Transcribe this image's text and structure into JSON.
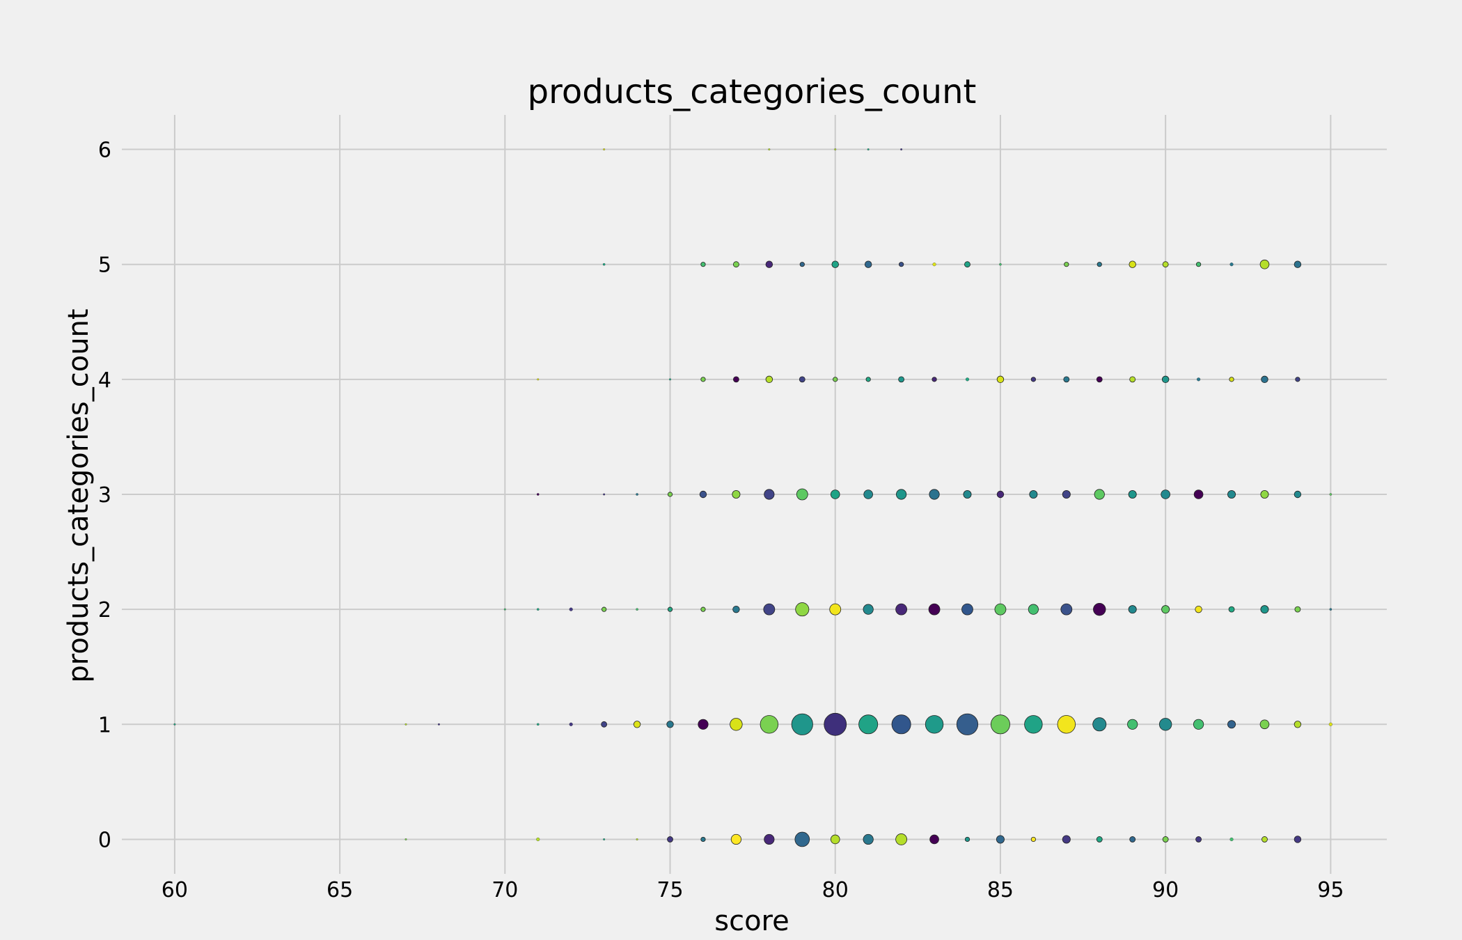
{
  "chart_data": {
    "type": "scatter",
    "title": "products_categories_count",
    "xlabel": "score",
    "ylabel": "products_categories_count",
    "xlim": [
      58.4,
      96.7
    ],
    "ylim": [
      -0.3,
      6.3
    ],
    "xticks": [
      60,
      65,
      70,
      75,
      80,
      85,
      90,
      95
    ],
    "yticks": [
      0,
      1,
      2,
      3,
      4,
      5,
      6
    ],
    "grid": true,
    "legend": "none",
    "colormap": "viridis",
    "points": [
      {
        "x": 67,
        "y": 0,
        "size": 1,
        "color": "#7ad151"
      },
      {
        "x": 71,
        "y": 0,
        "size": 3,
        "color": "#b5de2b"
      },
      {
        "x": 73,
        "y": 0,
        "size": 1,
        "color": "#22a884"
      },
      {
        "x": 74,
        "y": 0,
        "size": 1,
        "color": "#b5de2b"
      },
      {
        "x": 75,
        "y": 0,
        "size": 5,
        "color": "#443983"
      },
      {
        "x": 76,
        "y": 0,
        "size": 4,
        "color": "#2a788e"
      },
      {
        "x": 77,
        "y": 0,
        "size": 9,
        "color": "#fde725"
      },
      {
        "x": 78,
        "y": 0,
        "size": 9,
        "color": "#482878"
      },
      {
        "x": 79,
        "y": 0,
        "size": 13,
        "color": "#31688e"
      },
      {
        "x": 80,
        "y": 0,
        "size": 8,
        "color": "#b5de2b"
      },
      {
        "x": 81,
        "y": 0,
        "size": 9,
        "color": "#2a788e"
      },
      {
        "x": 82,
        "y": 0,
        "size": 10,
        "color": "#b5de2b"
      },
      {
        "x": 83,
        "y": 0,
        "size": 8,
        "color": "#440154"
      },
      {
        "x": 84,
        "y": 0,
        "size": 4,
        "color": "#1f988b"
      },
      {
        "x": 85,
        "y": 0,
        "size": 7,
        "color": "#31688e"
      },
      {
        "x": 86,
        "y": 0,
        "size": 4,
        "color": "#fde725"
      },
      {
        "x": 87,
        "y": 0,
        "size": 7,
        "color": "#443983"
      },
      {
        "x": 88,
        "y": 0,
        "size": 5,
        "color": "#22a884"
      },
      {
        "x": 89,
        "y": 0,
        "size": 5,
        "color": "#31688e"
      },
      {
        "x": 90,
        "y": 0,
        "size": 5,
        "color": "#7ad151"
      },
      {
        "x": 91,
        "y": 0,
        "size": 5,
        "color": "#443983"
      },
      {
        "x": 92,
        "y": 0,
        "size": 3,
        "color": "#44bf70"
      },
      {
        "x": 93,
        "y": 0,
        "size": 5,
        "color": "#b5de2b"
      },
      {
        "x": 94,
        "y": 0,
        "size": 6,
        "color": "#443983"
      },
      {
        "x": 60,
        "y": 1,
        "size": 1,
        "color": "#22a884"
      },
      {
        "x": 67,
        "y": 1,
        "size": 1,
        "color": "#b5de2b"
      },
      {
        "x": 68,
        "y": 1,
        "size": 1,
        "color": "#443983"
      },
      {
        "x": 71,
        "y": 1,
        "size": 2,
        "color": "#22a884"
      },
      {
        "x": 72,
        "y": 1,
        "size": 3,
        "color": "#443983"
      },
      {
        "x": 73,
        "y": 1,
        "size": 5,
        "color": "#414487"
      },
      {
        "x": 74,
        "y": 1,
        "size": 6,
        "color": "#dde318"
      },
      {
        "x": 75,
        "y": 1,
        "size": 6,
        "color": "#2a788e"
      },
      {
        "x": 76,
        "y": 1,
        "size": 9,
        "color": "#440154"
      },
      {
        "x": 77,
        "y": 1,
        "size": 11,
        "color": "#d8e219"
      },
      {
        "x": 78,
        "y": 1,
        "size": 16,
        "color": "#7ad151"
      },
      {
        "x": 79,
        "y": 1,
        "size": 19,
        "color": "#1f968b"
      },
      {
        "x": 80,
        "y": 1,
        "size": 20,
        "color": "#3e2f7b"
      },
      {
        "x": 81,
        "y": 1,
        "size": 17,
        "color": "#20a386"
      },
      {
        "x": 82,
        "y": 1,
        "size": 17,
        "color": "#31568c"
      },
      {
        "x": 83,
        "y": 1,
        "size": 16,
        "color": "#1f9a8a"
      },
      {
        "x": 84,
        "y": 1,
        "size": 19,
        "color": "#355e8d"
      },
      {
        "x": 85,
        "y": 1,
        "size": 17,
        "color": "#6ccd5a"
      },
      {
        "x": 86,
        "y": 1,
        "size": 16,
        "color": "#20a386"
      },
      {
        "x": 87,
        "y": 1,
        "size": 16,
        "color": "#f2e51d"
      },
      {
        "x": 88,
        "y": 1,
        "size": 12,
        "color": "#23898e"
      },
      {
        "x": 89,
        "y": 1,
        "size": 9,
        "color": "#44bf70"
      },
      {
        "x": 90,
        "y": 1,
        "size": 11,
        "color": "#238a8d"
      },
      {
        "x": 91,
        "y": 1,
        "size": 9,
        "color": "#44bf70"
      },
      {
        "x": 92,
        "y": 1,
        "size": 7,
        "color": "#33638d"
      },
      {
        "x": 93,
        "y": 1,
        "size": 8,
        "color": "#7ad151"
      },
      {
        "x": 94,
        "y": 1,
        "size": 6,
        "color": "#b5de2b"
      },
      {
        "x": 95,
        "y": 1,
        "size": 3,
        "color": "#dde318"
      },
      {
        "x": 70,
        "y": 2,
        "size": 1,
        "color": "#44bf70"
      },
      {
        "x": 71,
        "y": 2,
        "size": 2,
        "color": "#22a884"
      },
      {
        "x": 72,
        "y": 2,
        "size": 3,
        "color": "#443983"
      },
      {
        "x": 73,
        "y": 2,
        "size": 4,
        "color": "#7ad151"
      },
      {
        "x": 74,
        "y": 2,
        "size": 2,
        "color": "#44bf70"
      },
      {
        "x": 75,
        "y": 2,
        "size": 4,
        "color": "#22a884"
      },
      {
        "x": 76,
        "y": 2,
        "size": 4,
        "color": "#7ad151"
      },
      {
        "x": 77,
        "y": 2,
        "size": 6,
        "color": "#2a788e"
      },
      {
        "x": 78,
        "y": 2,
        "size": 10,
        "color": "#414487"
      },
      {
        "x": 79,
        "y": 2,
        "size": 12,
        "color": "#8fd744"
      },
      {
        "x": 80,
        "y": 2,
        "size": 10,
        "color": "#f2e51d"
      },
      {
        "x": 81,
        "y": 2,
        "size": 9,
        "color": "#23898e"
      },
      {
        "x": 82,
        "y": 2,
        "size": 10,
        "color": "#482878"
      },
      {
        "x": 83,
        "y": 2,
        "size": 10,
        "color": "#440154"
      },
      {
        "x": 84,
        "y": 2,
        "size": 10,
        "color": "#31568c"
      },
      {
        "x": 85,
        "y": 2,
        "size": 10,
        "color": "#5ec962"
      },
      {
        "x": 86,
        "y": 2,
        "size": 9,
        "color": "#44bf70"
      },
      {
        "x": 87,
        "y": 2,
        "size": 10,
        "color": "#3b528b"
      },
      {
        "x": 88,
        "y": 2,
        "size": 11,
        "color": "#440154"
      },
      {
        "x": 89,
        "y": 2,
        "size": 7,
        "color": "#23898e"
      },
      {
        "x": 90,
        "y": 2,
        "size": 7,
        "color": "#5ec962"
      },
      {
        "x": 91,
        "y": 2,
        "size": 6,
        "color": "#f2e51d"
      },
      {
        "x": 92,
        "y": 2,
        "size": 5,
        "color": "#22a884"
      },
      {
        "x": 93,
        "y": 2,
        "size": 7,
        "color": "#1f968b"
      },
      {
        "x": 94,
        "y": 2,
        "size": 5,
        "color": "#7ad151"
      },
      {
        "x": 95,
        "y": 2,
        "size": 2,
        "color": "#2a788e"
      },
      {
        "x": 71,
        "y": 3,
        "size": 2,
        "color": "#440154"
      },
      {
        "x": 73,
        "y": 3,
        "size": 1,
        "color": "#443983"
      },
      {
        "x": 74,
        "y": 3,
        "size": 2,
        "color": "#2a788e"
      },
      {
        "x": 75,
        "y": 3,
        "size": 4,
        "color": "#7ad151"
      },
      {
        "x": 76,
        "y": 3,
        "size": 6,
        "color": "#3b528b"
      },
      {
        "x": 77,
        "y": 3,
        "size": 7,
        "color": "#8fd744"
      },
      {
        "x": 78,
        "y": 3,
        "size": 9,
        "color": "#414487"
      },
      {
        "x": 79,
        "y": 3,
        "size": 10,
        "color": "#5ec962"
      },
      {
        "x": 80,
        "y": 3,
        "size": 8,
        "color": "#20a386"
      },
      {
        "x": 81,
        "y": 3,
        "size": 8,
        "color": "#23898e"
      },
      {
        "x": 82,
        "y": 3,
        "size": 9,
        "color": "#1f968b"
      },
      {
        "x": 83,
        "y": 3,
        "size": 9,
        "color": "#2c728e"
      },
      {
        "x": 84,
        "y": 3,
        "size": 7,
        "color": "#23898e"
      },
      {
        "x": 85,
        "y": 3,
        "size": 6,
        "color": "#482878"
      },
      {
        "x": 86,
        "y": 3,
        "size": 7,
        "color": "#23898e"
      },
      {
        "x": 87,
        "y": 3,
        "size": 7,
        "color": "#414487"
      },
      {
        "x": 88,
        "y": 3,
        "size": 9,
        "color": "#5ec962"
      },
      {
        "x": 89,
        "y": 3,
        "size": 7,
        "color": "#1f968b"
      },
      {
        "x": 90,
        "y": 3,
        "size": 8,
        "color": "#23898e"
      },
      {
        "x": 91,
        "y": 3,
        "size": 8,
        "color": "#440154"
      },
      {
        "x": 92,
        "y": 3,
        "size": 7,
        "color": "#23898e"
      },
      {
        "x": 93,
        "y": 3,
        "size": 7,
        "color": "#8fd744"
      },
      {
        "x": 94,
        "y": 3,
        "size": 6,
        "color": "#23898e"
      },
      {
        "x": 95,
        "y": 3,
        "size": 2,
        "color": "#5ec962"
      },
      {
        "x": 71,
        "y": 4,
        "size": 1,
        "color": "#dde318"
      },
      {
        "x": 75,
        "y": 4,
        "size": 1,
        "color": "#22a884"
      },
      {
        "x": 76,
        "y": 4,
        "size": 4,
        "color": "#7ad151"
      },
      {
        "x": 77,
        "y": 4,
        "size": 5,
        "color": "#440154"
      },
      {
        "x": 78,
        "y": 4,
        "size": 6,
        "color": "#b5de2b"
      },
      {
        "x": 79,
        "y": 4,
        "size": 5,
        "color": "#414487"
      },
      {
        "x": 80,
        "y": 4,
        "size": 4,
        "color": "#7ad151"
      },
      {
        "x": 81,
        "y": 4,
        "size": 4,
        "color": "#22a884"
      },
      {
        "x": 82,
        "y": 4,
        "size": 5,
        "color": "#1f968b"
      },
      {
        "x": 83,
        "y": 4,
        "size": 4,
        "color": "#482878"
      },
      {
        "x": 84,
        "y": 4,
        "size": 3,
        "color": "#22a884"
      },
      {
        "x": 85,
        "y": 4,
        "size": 6,
        "color": "#d8e219"
      },
      {
        "x": 86,
        "y": 4,
        "size": 4,
        "color": "#443983"
      },
      {
        "x": 87,
        "y": 4,
        "size": 5,
        "color": "#2a788e"
      },
      {
        "x": 88,
        "y": 4,
        "size": 5,
        "color": "#440154"
      },
      {
        "x": 89,
        "y": 4,
        "size": 5,
        "color": "#b5de2b"
      },
      {
        "x": 90,
        "y": 4,
        "size": 6,
        "color": "#1f968b"
      },
      {
        "x": 91,
        "y": 4,
        "size": 3,
        "color": "#2a788e"
      },
      {
        "x": 92,
        "y": 4,
        "size": 4,
        "color": "#d8e219"
      },
      {
        "x": 93,
        "y": 4,
        "size": 6,
        "color": "#2c728e"
      },
      {
        "x": 94,
        "y": 4,
        "size": 4,
        "color": "#414487"
      },
      {
        "x": 73,
        "y": 5,
        "size": 2,
        "color": "#22a884"
      },
      {
        "x": 76,
        "y": 5,
        "size": 4,
        "color": "#44bf70"
      },
      {
        "x": 77,
        "y": 5,
        "size": 5,
        "color": "#7ad151"
      },
      {
        "x": 78,
        "y": 5,
        "size": 6,
        "color": "#482878"
      },
      {
        "x": 79,
        "y": 5,
        "size": 4,
        "color": "#31688e"
      },
      {
        "x": 80,
        "y": 5,
        "size": 6,
        "color": "#20a386"
      },
      {
        "x": 81,
        "y": 5,
        "size": 6,
        "color": "#31688e"
      },
      {
        "x": 82,
        "y": 5,
        "size": 4,
        "color": "#3b528b"
      },
      {
        "x": 83,
        "y": 5,
        "size": 3,
        "color": "#dde318"
      },
      {
        "x": 84,
        "y": 5,
        "size": 5,
        "color": "#20a386"
      },
      {
        "x": 85,
        "y": 5,
        "size": 2,
        "color": "#44bf70"
      },
      {
        "x": 87,
        "y": 5,
        "size": 4,
        "color": "#7ad151"
      },
      {
        "x": 88,
        "y": 5,
        "size": 4,
        "color": "#2a788e"
      },
      {
        "x": 89,
        "y": 5,
        "size": 6,
        "color": "#d8e219"
      },
      {
        "x": 90,
        "y": 5,
        "size": 5,
        "color": "#b5de2b"
      },
      {
        "x": 91,
        "y": 5,
        "size": 4,
        "color": "#44bf70"
      },
      {
        "x": 92,
        "y": 5,
        "size": 3,
        "color": "#2a788e"
      },
      {
        "x": 93,
        "y": 5,
        "size": 8,
        "color": "#b5de2b"
      },
      {
        "x": 94,
        "y": 5,
        "size": 6,
        "color": "#2c728e"
      },
      {
        "x": 73,
        "y": 6,
        "size": 1,
        "color": "#dde318"
      },
      {
        "x": 78,
        "y": 6,
        "size": 1,
        "color": "#b5de2b"
      },
      {
        "x": 80,
        "y": 6,
        "size": 1,
        "color": "#b5de2b"
      },
      {
        "x": 81,
        "y": 6,
        "size": 1,
        "color": "#22a884"
      },
      {
        "x": 82,
        "y": 6,
        "size": 1,
        "color": "#443983"
      }
    ]
  }
}
